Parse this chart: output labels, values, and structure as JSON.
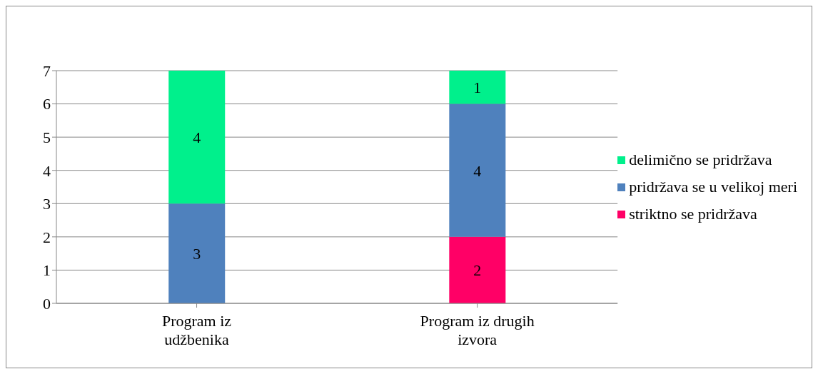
{
  "chart_data": {
    "type": "bar",
    "stacked": true,
    "categories": [
      "Program iz udžbenika",
      "Program iz drugih izvora"
    ],
    "series": [
      {
        "name": "striktno se pridržava",
        "color": "#ff0066",
        "values": [
          0,
          2
        ],
        "value_labels": [
          null,
          "2"
        ]
      },
      {
        "name": "pridržava se u velikoj meri",
        "color": "#4f81bd",
        "values": [
          3,
          4
        ],
        "value_labels": [
          "3",
          "4"
        ]
      },
      {
        "name": "delimično se pridržava",
        "color": "#00f08c",
        "values": [
          4,
          1
        ],
        "value_labels": [
          "4",
          "1"
        ]
      }
    ],
    "ylim": [
      0,
      7
    ],
    "yticks": [
      0,
      1,
      2,
      3,
      4,
      5,
      6,
      7
    ],
    "grid": "y",
    "legend": "right"
  }
}
